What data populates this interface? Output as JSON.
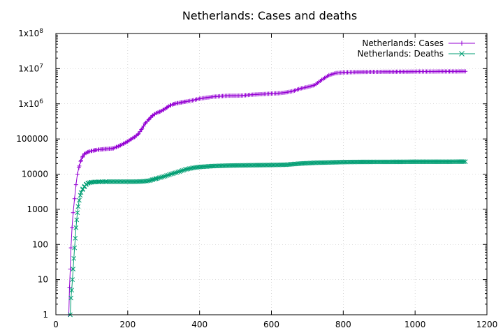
{
  "chart_data": {
    "type": "line",
    "title": "Netherlands: Cases and deaths",
    "xlabel": "",
    "ylabel": "",
    "xlim": [
      0,
      1200
    ],
    "ylim": [
      1,
      100000000
    ],
    "yscale": "log",
    "grid": true,
    "legend_position": "top-right",
    "x_ticks": [
      {
        "value": 0,
        "label": "0"
      },
      {
        "value": 200,
        "label": "200"
      },
      {
        "value": 400,
        "label": "400"
      },
      {
        "value": 600,
        "label": "600"
      },
      {
        "value": 800,
        "label": "800"
      },
      {
        "value": 1000,
        "label": "1000"
      },
      {
        "value": 1200,
        "label": "1200"
      }
    ],
    "y_ticks": [
      {
        "value": 1,
        "label": "1"
      },
      {
        "value": 10,
        "label": "10"
      },
      {
        "value": 100,
        "label": "100"
      },
      {
        "value": 1000,
        "label": "1000"
      },
      {
        "value": 10000,
        "label": "10000"
      },
      {
        "value": 100000,
        "label": "100000"
      },
      {
        "value": 1000000,
        "label": "1x10",
        "sup": "6"
      },
      {
        "value": 10000000,
        "label": "1x10",
        "sup": "7"
      },
      {
        "value": 100000000,
        "label": "1x10",
        "sup": "8"
      }
    ],
    "series": [
      {
        "name": "Netherlands: Cases",
        "color": "#9400d3",
        "marker": "plus",
        "x": [
          36,
          38,
          40,
          42,
          45,
          48,
          52,
          56,
          60,
          65,
          70,
          75,
          80,
          90,
          100,
          110,
          120,
          130,
          140,
          150,
          160,
          170,
          180,
          190,
          200,
          210,
          220,
          230,
          240,
          250,
          260,
          265,
          270,
          275,
          280,
          290,
          300,
          310,
          320,
          330,
          340,
          350,
          360,
          380,
          400,
          420,
          440,
          460,
          480,
          500,
          520,
          540,
          560,
          580,
          600,
          620,
          640,
          660,
          680,
          700,
          720,
          740,
          760,
          780,
          800,
          820,
          840,
          860,
          880,
          900,
          920,
          940,
          960,
          980,
          1000,
          1020,
          1040,
          1060,
          1080,
          1100,
          1120,
          1140
        ],
        "values": [
          1,
          6,
          20,
          80,
          300,
          800,
          2000,
          5000,
          10000,
          17000,
          25000,
          32000,
          38000,
          43000,
          46000,
          48000,
          50000,
          51000,
          52000,
          53000,
          54000,
          60000,
          66000,
          75000,
          85000,
          100000,
          115000,
          140000,
          200000,
          290000,
          370000,
          420000,
          470000,
          510000,
          550000,
          600000,
          680000,
          800000,
          920000,
          1000000,
          1050000,
          1100000,
          1150000,
          1250000,
          1400000,
          1500000,
          1600000,
          1650000,
          1700000,
          1700000,
          1720000,
          1800000,
          1850000,
          1900000,
          1950000,
          2000000,
          2100000,
          2300000,
          2700000,
          3000000,
          3400000,
          4800000,
          6500000,
          7500000,
          7800000,
          7900000,
          8000000,
          8050000,
          8100000,
          8100000,
          8150000,
          8150000,
          8200000,
          8200000,
          8250000,
          8300000,
          8300000,
          8300000,
          8350000,
          8350000,
          8350000,
          8400000
        ]
      },
      {
        "name": "Netherlands: Deaths",
        "color": "#009e73",
        "marker": "cross",
        "x": [
          40,
          42,
          44,
          46,
          48,
          50,
          52,
          54,
          56,
          58,
          60,
          62,
          65,
          68,
          70,
          75,
          80,
          85,
          90,
          100,
          110,
          120,
          130,
          140,
          160,
          180,
          200,
          220,
          240,
          260,
          270,
          280,
          300,
          320,
          340,
          360,
          380,
          400,
          440,
          480,
          520,
          560,
          600,
          640,
          680,
          720,
          760,
          800,
          840,
          880,
          920,
          960,
          1000,
          1040,
          1080,
          1120,
          1140
        ],
        "values": [
          1,
          3,
          5,
          10,
          20,
          40,
          80,
          150,
          300,
          500,
          800,
          1200,
          1800,
          2500,
          3000,
          3800,
          4500,
          5200,
          5600,
          5900,
          6000,
          6050,
          6100,
          6100,
          6100,
          6100,
          6100,
          6100,
          6200,
          6500,
          7000,
          7500,
          8500,
          10000,
          11500,
          13500,
          15000,
          16000,
          17000,
          17500,
          17800,
          18000,
          18200,
          18500,
          20000,
          21000,
          21500,
          22000,
          22200,
          22300,
          22300,
          22400,
          22500,
          22500,
          22500,
          22600,
          22600
        ]
      }
    ]
  }
}
